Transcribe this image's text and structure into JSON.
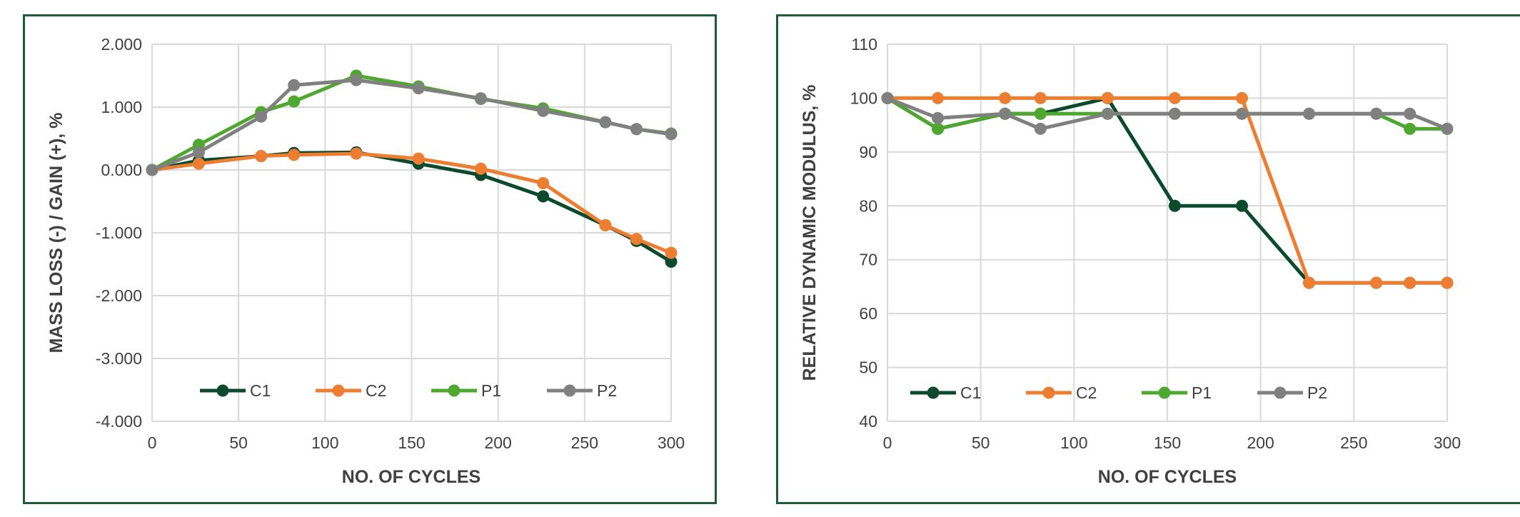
{
  "chart_data": [
    {
      "type": "line",
      "xlabel": "NO. OF CYCLES",
      "ylabel": "MASS LOSS (-) / GAIN (+), %",
      "xlim": [
        0,
        300
      ],
      "ylim": [
        -4,
        2
      ],
      "xticks": [
        0,
        50,
        100,
        150,
        200,
        250,
        300
      ],
      "xtick_labels": [
        "0",
        "50",
        "100",
        "150",
        "200",
        "250",
        "300"
      ],
      "yticks": [
        2,
        1,
        0,
        -1,
        -2,
        -3,
        -4
      ],
      "ytick_labels": [
        "2.000",
        "1.000",
        "0.000",
        "-1.000",
        "-2.000",
        "-3.000",
        "-4.000"
      ],
      "grid": true,
      "legend_position": "bottom-inside",
      "series": [
        {
          "name": "C1",
          "color": "#0b4a2c",
          "x": [
            0,
            27,
            63,
            82,
            118,
            154,
            190,
            226,
            262,
            280,
            300
          ],
          "y": [
            0,
            0.15,
            0.22,
            0.27,
            0.28,
            0.1,
            -0.08,
            -0.42,
            -0.88,
            -1.13,
            -1.46
          ]
        },
        {
          "name": "C2",
          "color": "#ed7d31",
          "x": [
            0,
            27,
            63,
            82,
            118,
            154,
            190,
            226,
            262,
            280,
            300
          ],
          "y": [
            0,
            0.1,
            0.22,
            0.24,
            0.26,
            0.18,
            0.02,
            -0.21,
            -0.88,
            -1.1,
            -1.32
          ]
        },
        {
          "name": "P1",
          "color": "#4ea72e",
          "x": [
            0,
            27,
            63,
            82,
            118,
            154,
            190,
            226,
            262,
            280,
            300
          ],
          "y": [
            0,
            0.4,
            0.92,
            1.09,
            1.5,
            1.33,
            1.13,
            0.98,
            0.76,
            0.65,
            0.58
          ]
        },
        {
          "name": "P2",
          "color": "#808080",
          "x": [
            0,
            27,
            63,
            82,
            118,
            154,
            190,
            226,
            262,
            280,
            300
          ],
          "y": [
            0,
            0.28,
            0.85,
            1.35,
            1.43,
            1.3,
            1.14,
            0.94,
            0.76,
            0.65,
            0.57
          ]
        }
      ]
    },
    {
      "type": "line",
      "xlabel": "NO. OF CYCLES",
      "ylabel": "RELATIVE DYNAMIC MODULUS, %",
      "xlim": [
        0,
        300
      ],
      "ylim": [
        40,
        110
      ],
      "xticks": [
        0,
        50,
        100,
        150,
        200,
        250,
        300
      ],
      "xtick_labels": [
        "0",
        "50",
        "100",
        "150",
        "200",
        "250",
        "300"
      ],
      "yticks": [
        110,
        100,
        90,
        80,
        70,
        60,
        50,
        40
      ],
      "ytick_labels": [
        "110",
        "100",
        "90",
        "80",
        "70",
        "60",
        "50",
        "40"
      ],
      "grid": true,
      "legend_position": "bottom-inside",
      "series": [
        {
          "name": "C1",
          "color": "#0b4a2c",
          "x": [
            0,
            27,
            63,
            82,
            118,
            154,
            190,
            226,
            262,
            280,
            300
          ],
          "y": [
            100,
            94.3,
            97.1,
            97.1,
            100,
            80,
            80,
            65.7,
            65.7,
            65.7,
            65.7
          ]
        },
        {
          "name": "C2",
          "color": "#ed7d31",
          "x": [
            0,
            27,
            63,
            82,
            118,
            154,
            190,
            226,
            262,
            280,
            300
          ],
          "y": [
            100,
            100,
            100,
            100,
            100,
            100,
            100,
            65.7,
            65.7,
            65.7,
            65.7
          ]
        },
        {
          "name": "P1",
          "color": "#4ea72e",
          "x": [
            0,
            27,
            63,
            82,
            118,
            154,
            190,
            226,
            262,
            280,
            300
          ],
          "y": [
            100,
            94.3,
            97.1,
            97.1,
            97.1,
            97.1,
            97.1,
            97.1,
            97.1,
            94.3,
            94.3
          ]
        },
        {
          "name": "P2",
          "color": "#808080",
          "x": [
            0,
            27,
            63,
            82,
            118,
            154,
            190,
            226,
            262,
            280,
            300
          ],
          "y": [
            100,
            96.3,
            97.1,
            94.3,
            97.1,
            97.1,
            97.1,
            97.1,
            97.1,
            97.1,
            94.3
          ]
        }
      ]
    }
  ]
}
